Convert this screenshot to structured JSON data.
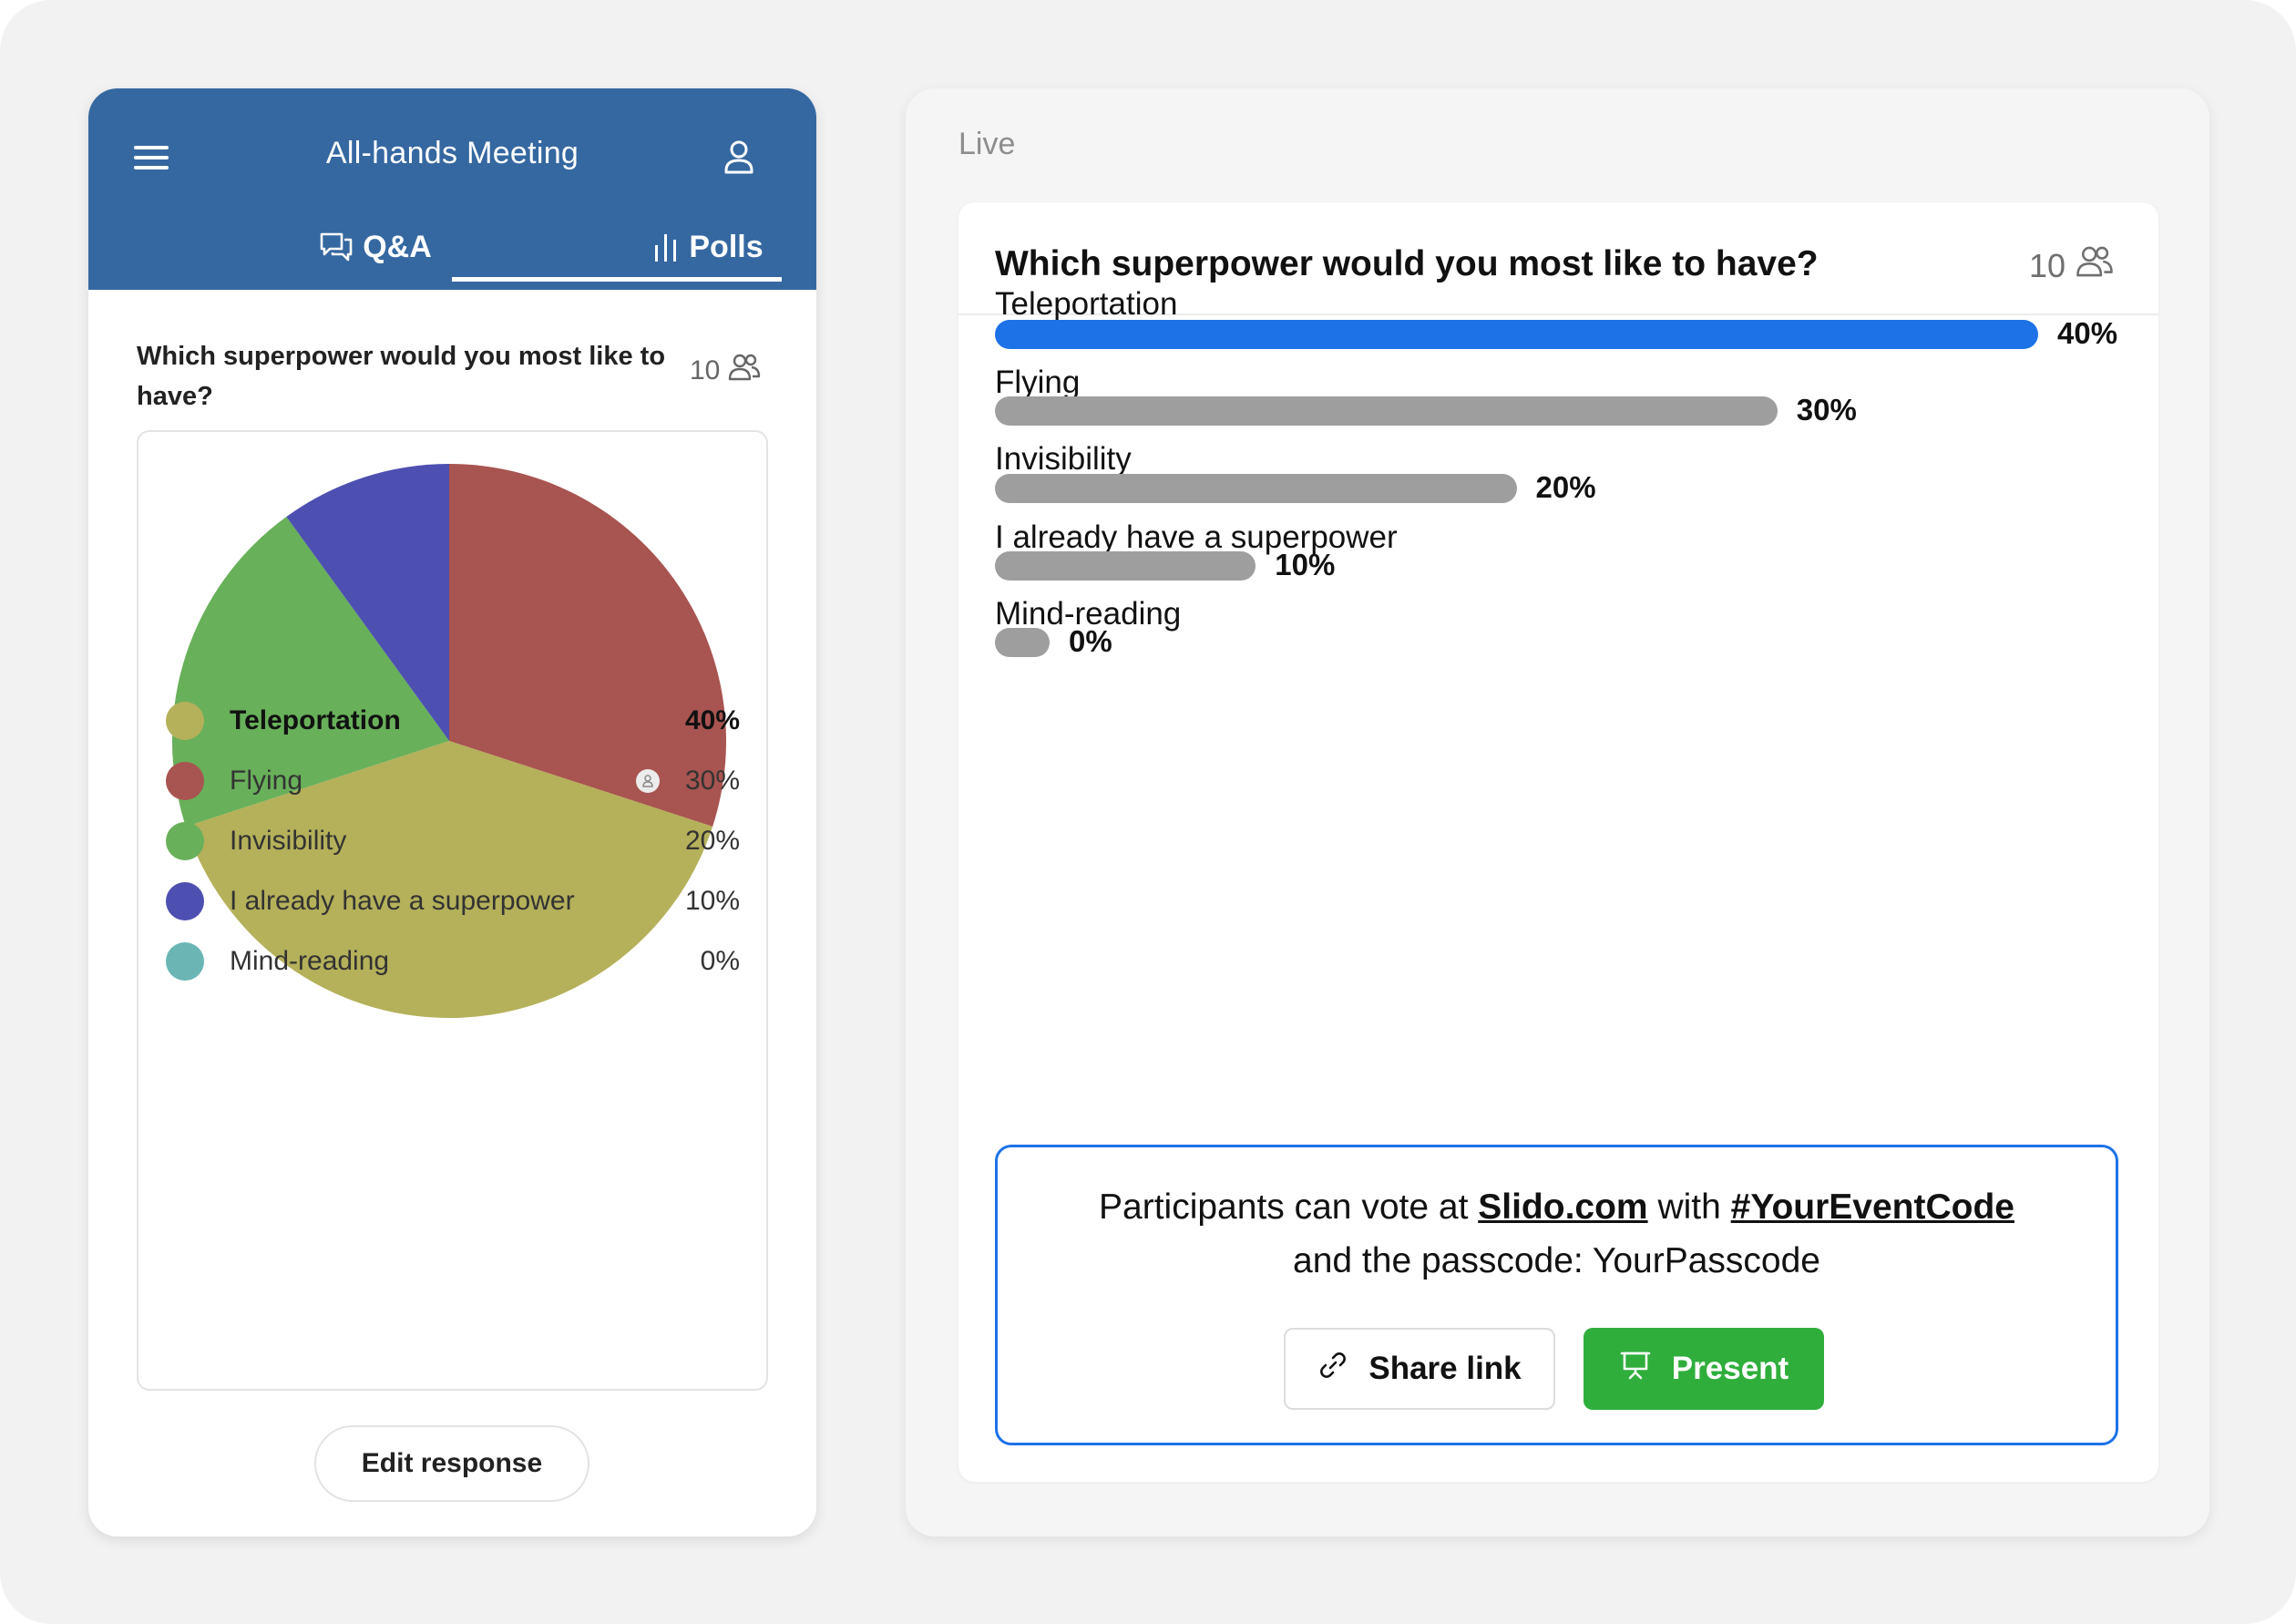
{
  "mobile": {
    "header": {
      "title": "All-hands Meeting",
      "menu_icon": "hamburger-icon",
      "user_icon": "user-icon",
      "tabs": [
        {
          "label": "Q&A",
          "icon": "chat-bubbles-icon",
          "active": false
        },
        {
          "label": "Polls",
          "icon": "bar-chart-icon",
          "active": true
        }
      ]
    },
    "poll": {
      "question": "Which superpower would you most like to have?",
      "participants": "10",
      "edit_label": "Edit response"
    }
  },
  "live": {
    "status": "Live",
    "question": "Which superpower would you most like to have?",
    "participants": "10",
    "vote_info": {
      "prefix": "Participants can vote at ",
      "site": "Slido.com",
      "middle": " with ",
      "code": "#YourEventCode",
      "line2": "and the passcode: YourPasscode"
    },
    "share_label": "Share link",
    "present_label": "Present"
  },
  "chart_data": [
    {
      "type": "pie",
      "title": "",
      "slices": [
        {
          "label": "Teleportation",
          "value": 40,
          "pct": "40%",
          "color": "#b5b05a",
          "highlight": true,
          "voted": false
        },
        {
          "label": "Flying",
          "value": 30,
          "pct": "30%",
          "color": "#a85450",
          "highlight": false,
          "voted": true
        },
        {
          "label": "Invisibility",
          "value": 20,
          "pct": "20%",
          "color": "#68b05a",
          "highlight": false,
          "voted": false
        },
        {
          "label": "I already have a superpower",
          "value": 10,
          "pct": "10%",
          "color": "#4d50b0",
          "highlight": false,
          "voted": false
        },
        {
          "label": "Mind-reading",
          "value": 0,
          "pct": "0%",
          "color": "#6bb5b5",
          "highlight": false,
          "voted": false
        }
      ]
    },
    {
      "type": "bar",
      "orientation": "horizontal",
      "categories": [
        "Teleportation",
        "Flying",
        "Invisibility",
        "I already have a superpower",
        "Mind-reading"
      ],
      "values": [
        40,
        30,
        20,
        10,
        0
      ],
      "labels": [
        "40%",
        "30%",
        "20%",
        "10%",
        "0%"
      ],
      "colors": {
        "leader": "#1d72e8",
        "other": "#9e9e9e"
      }
    }
  ]
}
